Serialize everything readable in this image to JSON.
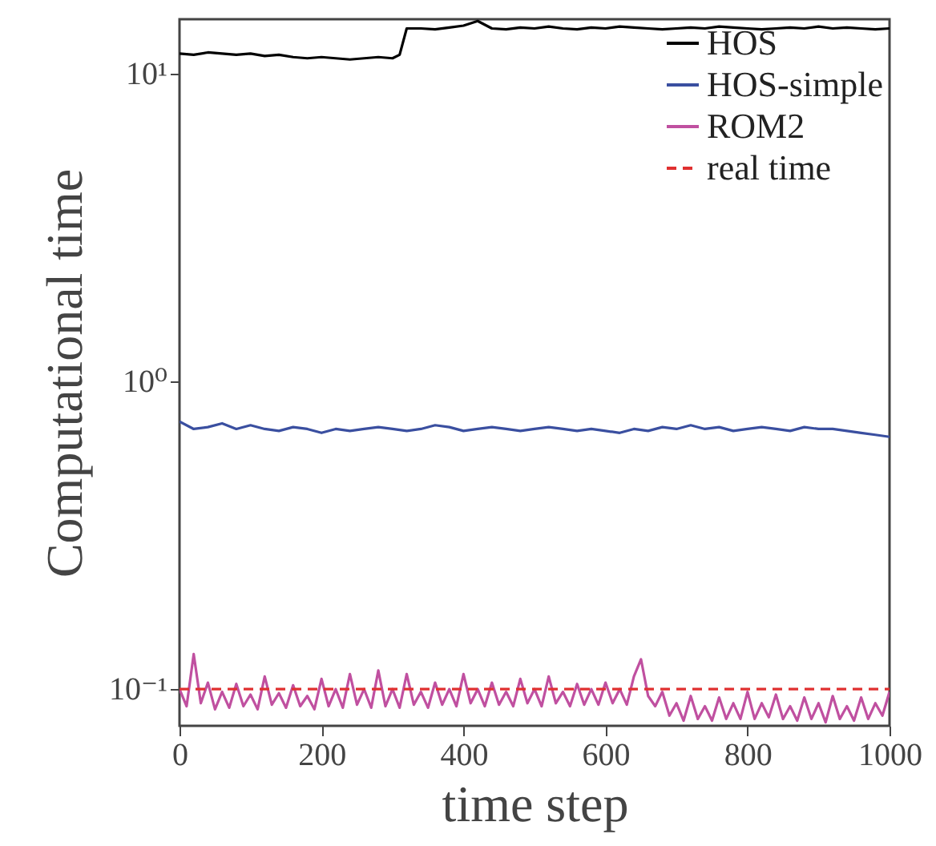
{
  "chart_data": {
    "type": "line",
    "xlabel": "time step",
    "ylabel": "Computational time",
    "log": true,
    "grid": false,
    "legend": "top right",
    "xlim": [
      0,
      1000
    ],
    "xticks": [
      0,
      200,
      400,
      600,
      800,
      1000
    ],
    "ylim": [
      0.076,
      15
    ],
    "yticks": [
      {
        "value": 0.1,
        "label": "10⁻¹"
      },
      {
        "value": 1,
        "label": "10⁰"
      },
      {
        "value": 10,
        "label": "10¹"
      }
    ],
    "series": [
      {
        "name": "HOS",
        "color": "#000000",
        "x": [
          0,
          20,
          40,
          60,
          80,
          100,
          120,
          140,
          160,
          180,
          200,
          220,
          240,
          260,
          280,
          300,
          310,
          320,
          340,
          360,
          380,
          400,
          420,
          440,
          460,
          480,
          500,
          520,
          540,
          560,
          580,
          600,
          620,
          640,
          660,
          680,
          700,
          720,
          740,
          760,
          780,
          800,
          820,
          840,
          860,
          880,
          900,
          920,
          940,
          960,
          980,
          1000
        ],
        "values": [
          11.6,
          11.5,
          11.7,
          11.6,
          11.5,
          11.6,
          11.4,
          11.5,
          11.3,
          11.2,
          11.3,
          11.2,
          11.1,
          11.2,
          11.3,
          11.2,
          11.5,
          14.0,
          14.0,
          13.9,
          14.1,
          14.3,
          14.8,
          14.0,
          13.9,
          14.1,
          14.0,
          14.2,
          14.0,
          13.9,
          14.1,
          14.0,
          14.2,
          14.1,
          14.0,
          13.9,
          14.0,
          14.1,
          14.0,
          14.2,
          14.1,
          14.0,
          13.9,
          14.0,
          14.1,
          14.0,
          14.2,
          14.0,
          14.1,
          14.0,
          13.9,
          14.0
        ]
      },
      {
        "name": "HOS-simple",
        "color": "#3a4fa0",
        "x": [
          0,
          20,
          40,
          60,
          80,
          100,
          120,
          140,
          160,
          180,
          200,
          220,
          240,
          260,
          280,
          300,
          320,
          340,
          360,
          380,
          400,
          420,
          440,
          460,
          480,
          500,
          520,
          540,
          560,
          580,
          600,
          620,
          640,
          660,
          680,
          700,
          720,
          740,
          760,
          780,
          800,
          820,
          840,
          860,
          880,
          900,
          920,
          940,
          960,
          980,
          1000
        ],
        "values": [
          0.74,
          0.7,
          0.71,
          0.73,
          0.7,
          0.72,
          0.7,
          0.69,
          0.71,
          0.7,
          0.68,
          0.7,
          0.69,
          0.7,
          0.71,
          0.7,
          0.69,
          0.7,
          0.72,
          0.71,
          0.69,
          0.7,
          0.71,
          0.7,
          0.69,
          0.7,
          0.71,
          0.7,
          0.69,
          0.7,
          0.69,
          0.68,
          0.7,
          0.69,
          0.71,
          0.7,
          0.72,
          0.7,
          0.71,
          0.69,
          0.7,
          0.71,
          0.7,
          0.69,
          0.71,
          0.7,
          0.7,
          0.69,
          0.68,
          0.67,
          0.66
        ]
      },
      {
        "name": "ROM2",
        "color": "#c050a0",
        "x": [
          0,
          10,
          20,
          30,
          40,
          50,
          60,
          70,
          80,
          90,
          100,
          110,
          120,
          130,
          140,
          150,
          160,
          170,
          180,
          190,
          200,
          210,
          220,
          230,
          240,
          250,
          260,
          270,
          280,
          290,
          300,
          310,
          320,
          330,
          340,
          350,
          360,
          370,
          380,
          390,
          400,
          410,
          420,
          430,
          440,
          450,
          460,
          470,
          480,
          490,
          500,
          510,
          520,
          530,
          540,
          550,
          560,
          570,
          580,
          590,
          600,
          610,
          620,
          630,
          640,
          650,
          660,
          670,
          680,
          690,
          700,
          710,
          720,
          730,
          740,
          750,
          760,
          770,
          780,
          790,
          800,
          810,
          820,
          830,
          840,
          850,
          860,
          870,
          880,
          890,
          900,
          910,
          920,
          930,
          940,
          950,
          960,
          970,
          980,
          990,
          1000
        ],
        "values": [
          0.1,
          0.088,
          0.13,
          0.09,
          0.105,
          0.086,
          0.098,
          0.087,
          0.104,
          0.088,
          0.096,
          0.086,
          0.11,
          0.089,
          0.097,
          0.087,
          0.103,
          0.088,
          0.095,
          0.086,
          0.108,
          0.088,
          0.1,
          0.087,
          0.112,
          0.089,
          0.1,
          0.087,
          0.115,
          0.088,
          0.1,
          0.087,
          0.112,
          0.089,
          0.098,
          0.087,
          0.105,
          0.089,
          0.1,
          0.088,
          0.112,
          0.09,
          0.1,
          0.088,
          0.105,
          0.089,
          0.098,
          0.088,
          0.108,
          0.09,
          0.1,
          0.088,
          0.11,
          0.09,
          0.098,
          0.088,
          0.104,
          0.089,
          0.1,
          0.089,
          0.105,
          0.09,
          0.1,
          0.089,
          0.11,
          0.125,
          0.095,
          0.088,
          0.098,
          0.082,
          0.09,
          0.079,
          0.095,
          0.08,
          0.088,
          0.079,
          0.094,
          0.08,
          0.09,
          0.08,
          0.098,
          0.08,
          0.09,
          0.081,
          0.096,
          0.08,
          0.088,
          0.079,
          0.094,
          0.08,
          0.09,
          0.078,
          0.095,
          0.08,
          0.088,
          0.079,
          0.094,
          0.08,
          0.09,
          0.082,
          0.098
        ]
      }
    ],
    "ref_lines": [
      {
        "axis": "y",
        "value": 0.1,
        "label": "real time",
        "color": "#e03030",
        "line_style": "dashed"
      }
    ]
  }
}
